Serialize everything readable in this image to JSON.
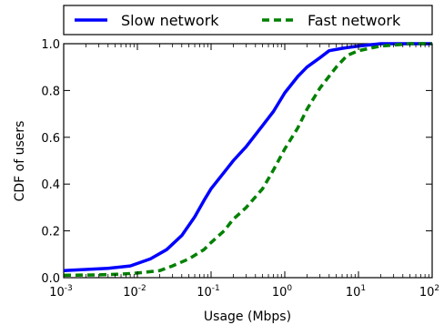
{
  "chart_data": {
    "type": "line",
    "xlabel": "Usage (Mbps)",
    "ylabel": "CDF of users",
    "xscale": "log",
    "xlim": [
      0.001,
      100
    ],
    "ylim": [
      0.0,
      1.0
    ],
    "grid": false,
    "legend_position": "top",
    "x_ticks": [
      {
        "base": "10",
        "exp": "-3"
      },
      {
        "base": "10",
        "exp": "-2"
      },
      {
        "base": "10",
        "exp": "-1"
      },
      {
        "base": "10",
        "exp": "0"
      },
      {
        "base": "10",
        "exp": "1"
      },
      {
        "base": "10",
        "exp": "2"
      }
    ],
    "y_ticks": [
      "0.0",
      "0.2",
      "0.4",
      "0.6",
      "0.8",
      "1.0"
    ],
    "series": [
      {
        "name": "Slow network",
        "color": "#0000ff",
        "style": "solid",
        "x": [
          0.001,
          0.002,
          0.004,
          0.008,
          0.015,
          0.025,
          0.04,
          0.06,
          0.08,
          0.1,
          0.15,
          0.2,
          0.3,
          0.5,
          0.7,
          1.0,
          1.5,
          2.0,
          3.0,
          4.0,
          6.0,
          10,
          20,
          50,
          100
        ],
        "y": [
          0.03,
          0.035,
          0.04,
          0.05,
          0.08,
          0.12,
          0.18,
          0.26,
          0.33,
          0.38,
          0.45,
          0.5,
          0.56,
          0.65,
          0.71,
          0.79,
          0.86,
          0.9,
          0.94,
          0.97,
          0.98,
          0.99,
          1.0,
          1.0,
          1.0
        ]
      },
      {
        "name": "Fast network",
        "color": "#008000",
        "style": "dashed",
        "x": [
          0.001,
          0.003,
          0.006,
          0.01,
          0.02,
          0.03,
          0.05,
          0.08,
          0.1,
          0.15,
          0.2,
          0.3,
          0.5,
          0.7,
          1.0,
          1.5,
          2.0,
          3.0,
          5.0,
          7.0,
          10,
          20,
          50,
          100
        ],
        "y": [
          0.01,
          0.012,
          0.015,
          0.02,
          0.03,
          0.05,
          0.08,
          0.12,
          0.15,
          0.2,
          0.25,
          0.3,
          0.38,
          0.46,
          0.55,
          0.64,
          0.72,
          0.81,
          0.9,
          0.95,
          0.97,
          0.99,
          1.0,
          1.0
        ]
      }
    ]
  }
}
